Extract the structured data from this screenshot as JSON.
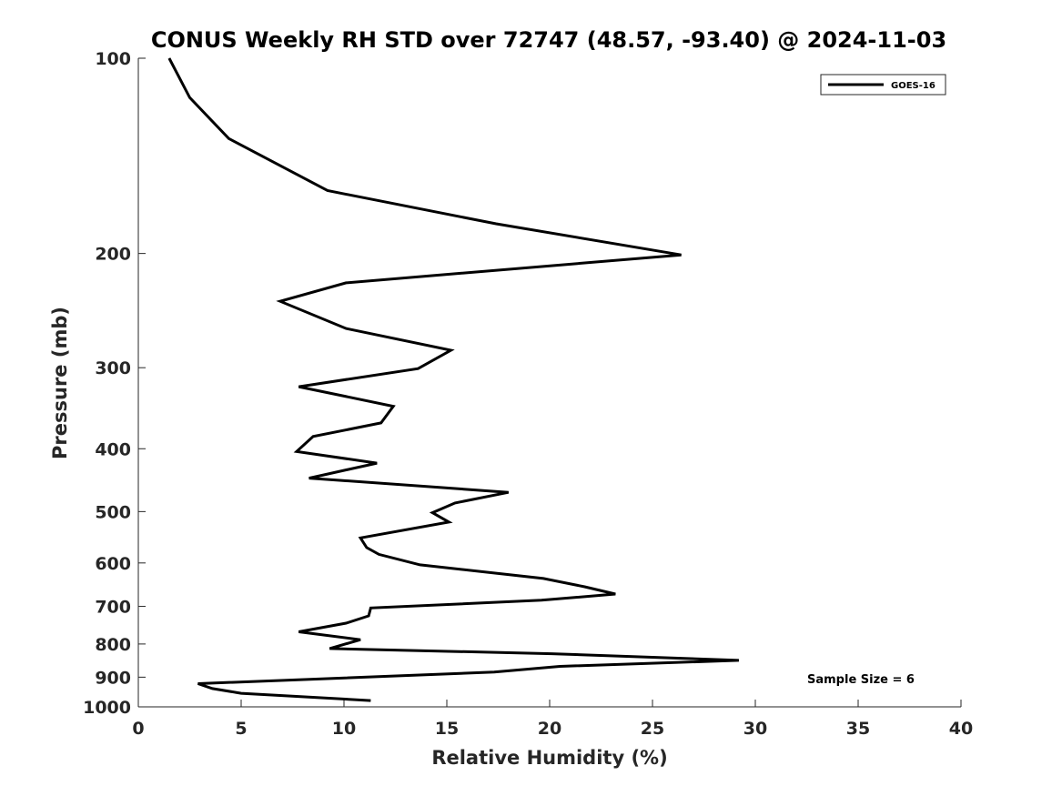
{
  "chart_data": {
    "type": "line",
    "title": "CONUS Weekly RH STD over 72747 (48.57, -93.40) @ 2024-11-03",
    "xlabel": "Relative Humidity (%)",
    "ylabel": "Pressure (mb)",
    "xlim": [
      0,
      40
    ],
    "ylim": [
      100,
      1000
    ],
    "y_scale": "log",
    "y_direction": "reversed",
    "x_ticks": [
      "0",
      "5",
      "10",
      "15",
      "20",
      "25",
      "30",
      "35",
      "40"
    ],
    "y_ticks": [
      "100",
      "200",
      "300",
      "400",
      "500",
      "600",
      "700",
      "800",
      "900",
      "1000"
    ],
    "grid": false,
    "legend_position": "top-right",
    "series": [
      {
        "name": "GOES-16",
        "color": "#000000",
        "points": [
          [
            1.5,
            100
          ],
          [
            2.5,
            115
          ],
          [
            4.4,
            133
          ],
          [
            9.2,
            160
          ],
          [
            17.4,
            180
          ],
          [
            26.4,
            201
          ],
          [
            10.1,
            222
          ],
          [
            6.9,
            237
          ],
          [
            10.1,
            261
          ],
          [
            15.2,
            282
          ],
          [
            13.6,
            301
          ],
          [
            7.8,
            321
          ],
          [
            12.4,
            344
          ],
          [
            11.8,
            365
          ],
          [
            8.5,
            383
          ],
          [
            7.7,
            404
          ],
          [
            11.6,
            421
          ],
          [
            8.3,
            444
          ],
          [
            18.0,
            467
          ],
          [
            15.4,
            485
          ],
          [
            14.3,
            502
          ],
          [
            15.1,
            519
          ],
          [
            10.8,
            549
          ],
          [
            11.1,
            568
          ],
          [
            11.7,
            582
          ],
          [
            13.7,
            604
          ],
          [
            19.7,
            634
          ],
          [
            21.7,
            653
          ],
          [
            23.2,
            670
          ],
          [
            19.6,
            685
          ],
          [
            11.3,
            704
          ],
          [
            11.2,
            724
          ],
          [
            10.1,
            743
          ],
          [
            7.8,
            766
          ],
          [
            10.8,
            788
          ],
          [
            9.3,
            813
          ],
          [
            20.1,
            828
          ],
          [
            29.2,
            848
          ],
          [
            20.5,
            866
          ],
          [
            17.3,
            884
          ],
          [
            2.9,
            921
          ],
          [
            3.6,
            937
          ],
          [
            5.0,
            953
          ],
          [
            11.3,
            978
          ]
        ]
      }
    ],
    "annotations": [
      "Sample Size = 6"
    ]
  }
}
